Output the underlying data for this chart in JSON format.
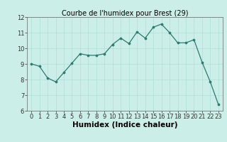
{
  "x": [
    0,
    1,
    2,
    3,
    4,
    5,
    6,
    7,
    8,
    9,
    10,
    11,
    12,
    13,
    14,
    15,
    16,
    17,
    18,
    19,
    20,
    21,
    22,
    23
  ],
  "y": [
    9.0,
    8.85,
    8.1,
    7.85,
    8.45,
    9.05,
    9.65,
    9.55,
    9.55,
    9.65,
    10.25,
    10.65,
    10.3,
    11.05,
    10.65,
    11.35,
    11.55,
    11.0,
    10.35,
    10.35,
    10.55,
    9.1,
    7.85,
    6.4
  ],
  "title": "Courbe de l'humidex pour Brest (29)",
  "xlabel": "Humidex (Indice chaleur)",
  "xlim": [
    -0.5,
    23.5
  ],
  "ylim": [
    6,
    12
  ],
  "yticks": [
    6,
    7,
    8,
    9,
    10,
    11,
    12
  ],
  "xticks": [
    0,
    1,
    2,
    3,
    4,
    5,
    6,
    7,
    8,
    9,
    10,
    11,
    12,
    13,
    14,
    15,
    16,
    17,
    18,
    19,
    20,
    21,
    22,
    23
  ],
  "line_color": "#2d7a6e",
  "marker_color": "#2d7a6e",
  "bg_color": "#cceee8",
  "grid_color": "#b0ddd8",
  "title_fontsize": 7.0,
  "label_fontsize": 7.5,
  "tick_fontsize": 6.0
}
